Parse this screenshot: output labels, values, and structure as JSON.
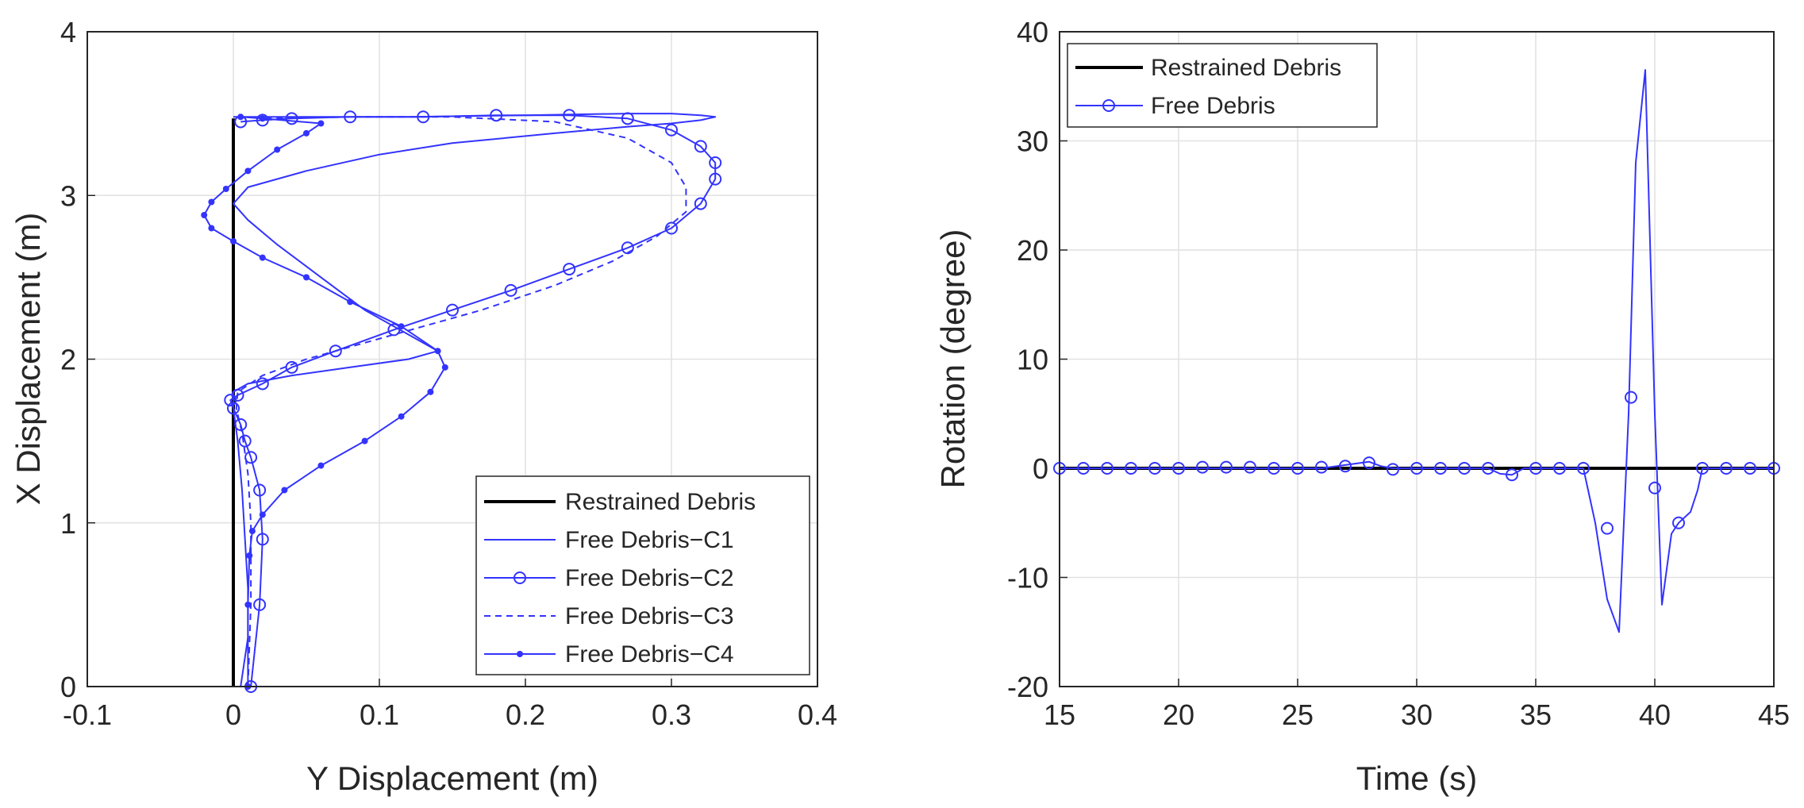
{
  "chart_data": [
    {
      "type": "line",
      "title": "",
      "xlabel": "Y Displacement (m)",
      "ylabel": "X Displacement (m)",
      "xlim": [
        -0.1,
        0.4
      ],
      "ylim": [
        0,
        4
      ],
      "xticks": [
        -0.1,
        0,
        0.1,
        0.2,
        0.3,
        0.4
      ],
      "xtick_labels": [
        "-0.1",
        "0",
        "0.1",
        "0.2",
        "0.3",
        "0.4"
      ],
      "yticks": [
        0,
        1,
        2,
        3,
        4
      ],
      "ytick_labels": [
        "0",
        "1",
        "2",
        "3",
        "4"
      ],
      "grid": true,
      "legend_position": "bottom-right",
      "series": [
        {
          "name": "Restrained Debris",
          "color": "#000000",
          "style": "solid-thick",
          "x": [
            0,
            0
          ],
          "y": [
            0,
            3.47
          ]
        },
        {
          "name": "Free Debris−C1",
          "color": "#3333ff",
          "style": "solid",
          "x": [
            0.005,
            0.01,
            0.01,
            0.008,
            0.006,
            0.003,
            0.0,
            0.0,
            0.01,
            0.04,
            0.08,
            0.12,
            0.14,
            0.12,
            0.09,
            0.06,
            0.03,
            0.01,
            0.0,
            0.01,
            0.05,
            0.1,
            0.15,
            0.22,
            0.27,
            0.3,
            0.32,
            0.33,
            0.32,
            0.3,
            0.27,
            0.2,
            0.12,
            0.05,
            0.02,
            0.0
          ],
          "y": [
            0.0,
            0.3,
            0.6,
            0.9,
            1.2,
            1.5,
            1.7,
            1.8,
            1.85,
            1.9,
            1.95,
            2.0,
            2.05,
            2.15,
            2.3,
            2.5,
            2.7,
            2.85,
            2.95,
            3.05,
            3.15,
            3.25,
            3.32,
            3.38,
            3.42,
            3.44,
            3.46,
            3.48,
            3.49,
            3.5,
            3.5,
            3.49,
            3.48,
            3.48,
            3.48,
            3.48
          ]
        },
        {
          "name": "Free Debris−C2",
          "color": "#3333ff",
          "style": "solid-circle",
          "x": [
            0.012,
            0.018,
            0.02,
            0.018,
            0.012,
            0.008,
            0.005,
            0.0,
            -0.002,
            0.003,
            0.02,
            0.04,
            0.07,
            0.11,
            0.15,
            0.19,
            0.23,
            0.27,
            0.3,
            0.32,
            0.33,
            0.33,
            0.32,
            0.3,
            0.27,
            0.23,
            0.18,
            0.13,
            0.08,
            0.04,
            0.02,
            0.005
          ],
          "y": [
            0.0,
            0.5,
            0.9,
            1.2,
            1.4,
            1.5,
            1.6,
            1.7,
            1.75,
            1.78,
            1.85,
            1.95,
            2.05,
            2.18,
            2.3,
            2.42,
            2.55,
            2.68,
            2.8,
            2.95,
            3.1,
            3.2,
            3.3,
            3.4,
            3.47,
            3.49,
            3.49,
            3.48,
            3.48,
            3.47,
            3.46,
            3.45
          ]
        },
        {
          "name": "Free Debris−C3",
          "color": "#3333ff",
          "style": "dashed",
          "x": [
            0.01,
            0.012,
            0.012,
            0.01,
            0.006,
            0.002,
            0.003,
            0.02,
            0.05,
            0.09,
            0.13,
            0.17,
            0.22,
            0.26,
            0.29,
            0.31,
            0.31,
            0.3,
            0.27,
            0.22,
            0.15,
            0.08,
            0.02
          ],
          "y": [
            0.0,
            0.5,
            1.0,
            1.3,
            1.55,
            1.7,
            1.8,
            1.9,
            2.0,
            2.1,
            2.2,
            2.3,
            2.45,
            2.6,
            2.75,
            2.9,
            3.05,
            3.2,
            3.35,
            3.45,
            3.48,
            3.48,
            3.47
          ]
        },
        {
          "name": "Free Debris−C4",
          "color": "#3333ff",
          "style": "solid-star",
          "x": [
            0.01,
            0.01,
            0.011,
            0.013,
            0.02,
            0.035,
            0.06,
            0.09,
            0.115,
            0.135,
            0.145,
            0.14,
            0.115,
            0.08,
            0.05,
            0.02,
            0.0,
            -0.015,
            -0.02,
            -0.015,
            -0.005,
            0.01,
            0.03,
            0.05,
            0.06,
            0.02,
            0.005
          ],
          "y": [
            0.0,
            0.5,
            0.8,
            0.95,
            1.05,
            1.2,
            1.35,
            1.5,
            1.65,
            1.8,
            1.95,
            2.05,
            2.2,
            2.35,
            2.5,
            2.62,
            2.72,
            2.8,
            2.88,
            2.96,
            3.04,
            3.15,
            3.28,
            3.38,
            3.44,
            3.47,
            3.48
          ]
        }
      ],
      "legend": [
        "Restrained Debris",
        "Free Debris−C1",
        "Free Debris−C2",
        "Free Debris−C3",
        "Free Debris−C4"
      ]
    },
    {
      "type": "line",
      "title": "",
      "xlabel": "Time (s)",
      "ylabel": "Rotation (degree)",
      "xlim": [
        15,
        45
      ],
      "ylim": [
        -20,
        40
      ],
      "xticks": [
        15,
        20,
        25,
        30,
        35,
        40,
        45
      ],
      "xtick_labels": [
        "15",
        "20",
        "25",
        "30",
        "35",
        "40",
        "45"
      ],
      "yticks": [
        -20,
        -10,
        0,
        10,
        20,
        30,
        40
      ],
      "ytick_labels": [
        "-20",
        "-10",
        "0",
        "10",
        "20",
        "30",
        "40"
      ],
      "grid": true,
      "legend_position": "top-left",
      "series": [
        {
          "name": "Restrained Debris",
          "color": "#000000",
          "style": "solid-thick",
          "x": [
            15,
            45
          ],
          "y": [
            0,
            0
          ]
        },
        {
          "name": "Free Debris",
          "color": "#3333ff",
          "style": "solid-circle",
          "x": [
            15,
            20,
            26,
            27,
            28,
            28.5,
            29,
            33,
            33.5,
            34,
            34.5,
            37,
            37.5,
            38,
            38.5,
            38.9,
            39.2,
            39.6,
            40,
            40.3,
            40.7,
            41,
            41.5,
            41.8,
            42,
            45
          ],
          "y": [
            0,
            0,
            0,
            0.3,
            0.6,
            0.2,
            0,
            0,
            -0.5,
            -0.6,
            0,
            0,
            -5,
            -12,
            -15,
            5,
            28,
            36.5,
            5,
            -12.5,
            -6,
            -5,
            -4,
            -2,
            0,
            0
          ],
          "markers_x": [
            15,
            16,
            17,
            18,
            19,
            20,
            21,
            22,
            23,
            24,
            25,
            26,
            27,
            28,
            29,
            30,
            31,
            32,
            33,
            34,
            35,
            36,
            37,
            38,
            39,
            40,
            41,
            42,
            43,
            44,
            45
          ],
          "markers_y": [
            0,
            0,
            0,
            0,
            0,
            0,
            0.1,
            0.1,
            0.1,
            0,
            0,
            0.1,
            0.2,
            0.5,
            -0.1,
            0,
            0,
            0,
            0,
            -0.6,
            0,
            0,
            0,
            -5.5,
            6.5,
            -1.8,
            -5,
            0,
            0,
            0,
            0
          ]
        }
      ],
      "legend": [
        "Restrained Debris",
        "Free Debris"
      ]
    }
  ]
}
